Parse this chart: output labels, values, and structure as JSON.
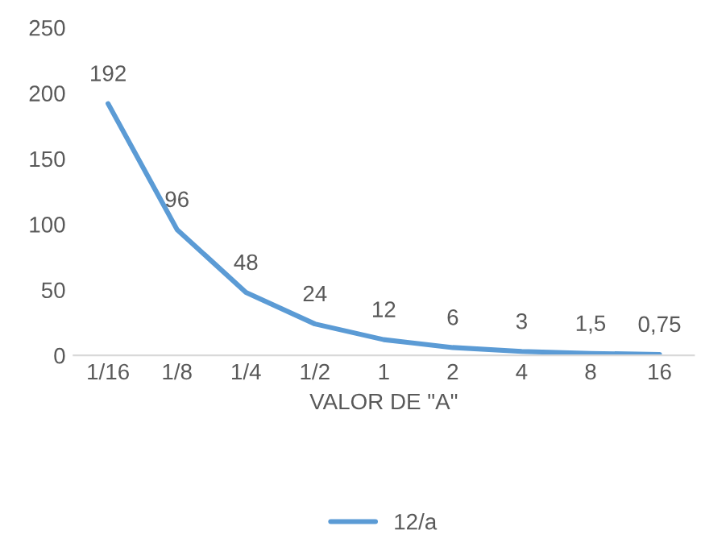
{
  "chart_data": {
    "type": "line",
    "xlabel": "VALOR DE \"A\"",
    "categories": [
      "1/16",
      "1/8",
      "1/4",
      "1/2",
      "1",
      "2",
      "4",
      "8",
      "16"
    ],
    "series": [
      {
        "name": "12/a",
        "color": "#5b9bd5",
        "values": [
          192,
          96,
          48,
          24,
          12,
          6,
          3,
          1.5,
          0.75
        ],
        "value_labels": [
          "192",
          "96",
          "48",
          "24",
          "12",
          "6",
          "3",
          "1,5",
          "0,75"
        ]
      }
    ],
    "ylim": [
      0,
      250
    ],
    "yticks": [
      0,
      50,
      100,
      150,
      200,
      250
    ],
    "grid": false,
    "legend": "bottom",
    "marker": "none",
    "line_style": "solid"
  }
}
